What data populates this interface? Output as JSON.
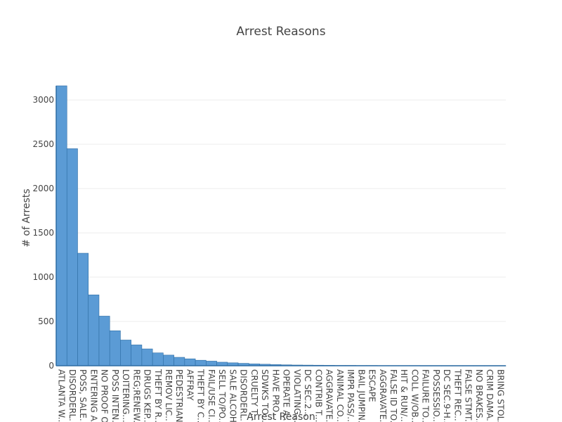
{
  "chart_data": {
    "type": "bar",
    "title": "Arrest Reasons",
    "xlabel": "Arrest Reason",
    "ylabel": "# of Arrests",
    "ylim": [
      0,
      3160
    ],
    "yticks": [
      0,
      500,
      1000,
      1500,
      2000,
      2500,
      3000
    ],
    "grid": true,
    "bar_color": "#5b9bd5",
    "bar_edge_color": "#2e6da4",
    "categories": [
      "ATLANTA W...",
      "DISORDERL...",
      "POSS, SALE...",
      "ENTERING A...",
      "NO PROOF O...",
      "POSS INTEN...",
      "LOITERING...",
      "REG;RENEW...",
      "DRUGS KEP...",
      "THEFT BY R...",
      "REMOV LIC...",
      "PEDESTRIAN...",
      "AFFRAY",
      "THEFT BY C...",
      "FAIL/USE CI...",
      "SELL TO/PO...",
      "SALE ALCOH...",
      "DISORDERL...",
      "CRUELTY T...",
      "SDWKS TO...",
      "HAVE PRO...",
      "OPERATE A...",
      "VIOLATING...",
      "DC SEC.2...",
      "CONTRIB T...",
      "AGGRAVATE...",
      "ANIMAL CO...",
      "IMPR PASS/...",
      "BAIL JUMPIN...",
      "ESCAPE",
      "AGGRAVATE...",
      "FALSE ID TO...",
      "HIT & RUN/...",
      "COLL W/OB...",
      "FAILURE TO...",
      "POSSESSIO...",
      "DC SEC.9-H...",
      "THEFT REC...",
      "FALSE STMT...",
      "NO BRAKES...",
      "CRIM DAMA...",
      "BRING STOL..."
    ],
    "values": [
      3160,
      2450,
      1270,
      800,
      560,
      395,
      290,
      235,
      190,
      145,
      120,
      95,
      78,
      62,
      52,
      40,
      33,
      27,
      21,
      17,
      13,
      10,
      8,
      7,
      6,
      5,
      4,
      4,
      3,
      3,
      2,
      2,
      2,
      2,
      1,
      1,
      1,
      1,
      1,
      1,
      1,
      1
    ]
  }
}
